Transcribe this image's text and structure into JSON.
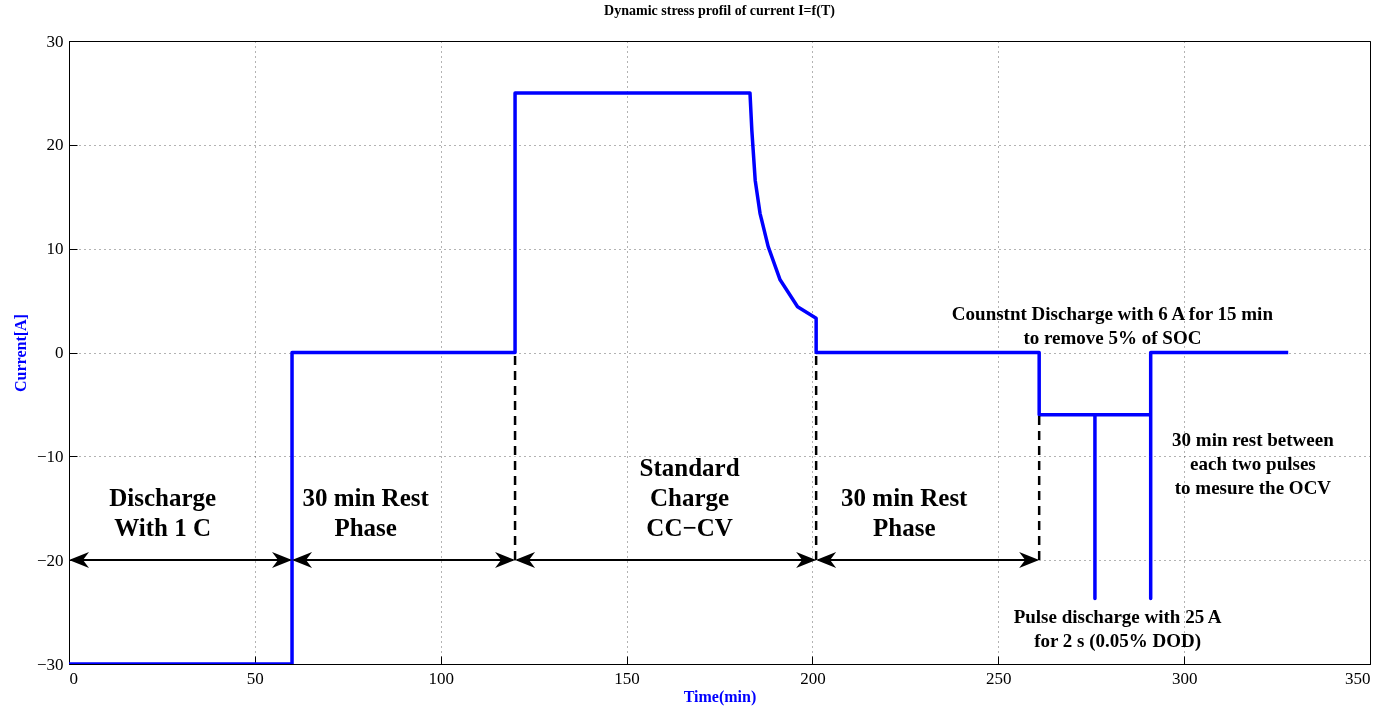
{
  "chart_data": {
    "type": "line",
    "title": "Dynamic stress profil of current I=f(T)",
    "xlabel": "Time(min)",
    "ylabel": "Current[A]",
    "xlim": [
      0,
      350
    ],
    "xticks": [
      0,
      50,
      100,
      150,
      200,
      250,
      300,
      350
    ],
    "ylim": [
      -30,
      30
    ],
    "yticks": [
      -30,
      -20,
      -10,
      0,
      10,
      20,
      30
    ],
    "grid": true,
    "line_style": "solid",
    "marker": "none",
    "series": [
      {
        "color": "#0000ff",
        "x": [
          0,
          60,
          60,
          120,
          120,
          183.2,
          183.7,
          184.6,
          185.9,
          188.1,
          191.3,
          196,
          201,
          201,
          261,
          261,
          276,
          276,
          276,
          291,
          291,
          291,
          328
        ],
        "values": [
          -30,
          -30,
          0,
          0,
          25,
          25,
          21.4,
          16.6,
          13.4,
          10.2,
          7,
          4.4,
          3.3,
          0,
          0,
          -6,
          -6,
          -23.7,
          -6,
          -6,
          -23.7,
          0,
          0
        ]
      }
    ],
    "annotations": [
      "Discharge\nWith 1 C",
      "30 min Rest\nPhase",
      "Standard\nCharge\nCC−CV",
      "30 min Rest\nPhase",
      "Counstnt Discharge with  6 A for 15 min\nto remove 5% of SOC",
      "30 min rest between\neach two pulses\nto mesure the OCV",
      "Pulse discharge with 25 A\nfor 2 s (0.05% DOD)"
    ]
  }
}
